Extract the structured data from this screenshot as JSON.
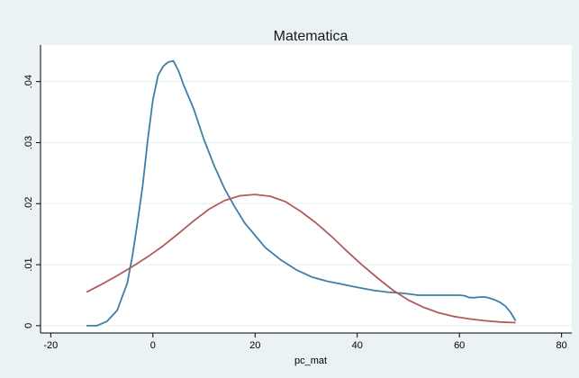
{
  "chart_data": {
    "type": "line",
    "title": "Matematica",
    "xlabel": "pc_mat",
    "ylabel": "",
    "xlim": [
      -22,
      82
    ],
    "ylim": [
      -0.0012,
      0.046
    ],
    "x_ticks": [
      -20,
      0,
      20,
      40,
      60,
      80
    ],
    "x_tick_labels": [
      "-20",
      "0",
      "20",
      "40",
      "60",
      "80"
    ],
    "y_ticks": [
      0,
      0.01,
      0.02,
      0.03,
      0.04
    ],
    "y_tick_labels": [
      "0",
      ".01",
      ".02",
      ".03",
      ".04"
    ],
    "grid": "horizontal",
    "legend": "none",
    "series": [
      {
        "color": "#3f7ea6",
        "x": [
          -13,
          -11,
          -9,
          -7,
          -5,
          -4,
          -3,
          -2,
          -1,
          0,
          1,
          2,
          3,
          4,
          5,
          6,
          8,
          10,
          12,
          14,
          16,
          18,
          20,
          22,
          25,
          28,
          31,
          34,
          37,
          40,
          43,
          46,
          49,
          52,
          55,
          58,
          60,
          61,
          62,
          63,
          64,
          65,
          66,
          67,
          68,
          69,
          70,
          71
        ],
        "y": [
          0.0,
          0.0,
          0.0007,
          0.0025,
          0.007,
          0.0115,
          0.017,
          0.023,
          0.0305,
          0.037,
          0.041,
          0.0425,
          0.0432,
          0.0434,
          0.0418,
          0.0395,
          0.0355,
          0.0305,
          0.0262,
          0.0225,
          0.0195,
          0.0168,
          0.0148,
          0.0128,
          0.0108,
          0.0092,
          0.008,
          0.0073,
          0.0068,
          0.0063,
          0.0058,
          0.0055,
          0.0053,
          0.005,
          0.005,
          0.005,
          0.005,
          0.0049,
          0.0046,
          0.0046,
          0.0047,
          0.0047,
          0.0045,
          0.0042,
          0.0038,
          0.0032,
          0.0022,
          0.0008
        ]
      },
      {
        "color": "#b35a5a",
        "x": [
          -13,
          -10,
          -7,
          -4,
          -1,
          2,
          5,
          8,
          11,
          14,
          17,
          20,
          23,
          26,
          29,
          32,
          35,
          38,
          41,
          44,
          47,
          50,
          53,
          56,
          59,
          62,
          65,
          68,
          71
        ],
        "y": [
          0.0055,
          0.0068,
          0.0082,
          0.0097,
          0.0113,
          0.0131,
          0.0151,
          0.0172,
          0.0191,
          0.0205,
          0.0213,
          0.0215,
          0.0212,
          0.0203,
          0.0187,
          0.0168,
          0.0146,
          0.0122,
          0.0099,
          0.0078,
          0.0058,
          0.0042,
          0.003,
          0.0021,
          0.0015,
          0.0011,
          0.0008,
          0.0006,
          0.0005
        ]
      }
    ]
  }
}
